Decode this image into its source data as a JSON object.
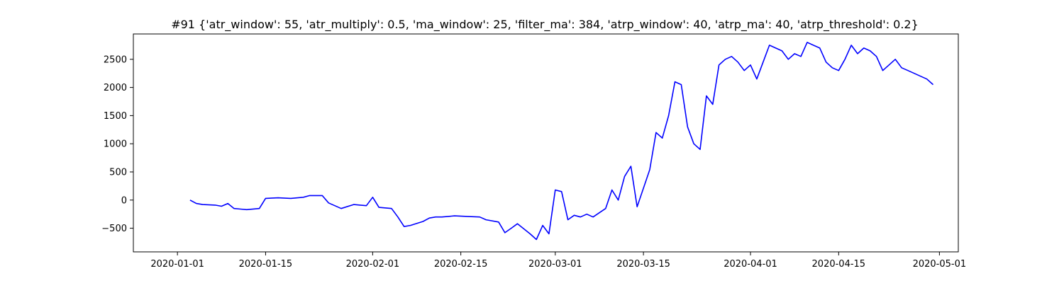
{
  "chart_data": {
    "type": "line",
    "title": "#91 {'atr_window': 55, 'atr_multiply': 0.5, 'ma_window': 25, 'filter_ma': 384, 'atrp_window': 40, 'atrp_ma': 40, 'atrp_threshold': 0.2}",
    "xlabel": "",
    "ylabel": "",
    "x_ticks": [
      "2020-01-01",
      "2020-01-15",
      "2020-02-01",
      "2020-02-15",
      "2020-03-01",
      "2020-03-15",
      "2020-04-01",
      "2020-04-15",
      "2020-05-01"
    ],
    "y_ticks": [
      -500,
      0,
      500,
      1000,
      1500,
      2000,
      2500
    ],
    "xlim": [
      "2019-12-25",
      "2020-05-04"
    ],
    "ylim": [
      -920,
      2950
    ],
    "grid": false,
    "series": [
      {
        "color": "#0000ff",
        "x": [
          "2020-01-03",
          "2020-01-04",
          "2020-01-05",
          "2020-01-07",
          "2020-01-08",
          "2020-01-09",
          "2020-01-10",
          "2020-01-11",
          "2020-01-12",
          "2020-01-14",
          "2020-01-15",
          "2020-01-17",
          "2020-01-19",
          "2020-01-21",
          "2020-01-22",
          "2020-01-24",
          "2020-01-25",
          "2020-01-27",
          "2020-01-29",
          "2020-01-31",
          "2020-02-01",
          "2020-02-02",
          "2020-02-04",
          "2020-02-05",
          "2020-02-06",
          "2020-02-07",
          "2020-02-09",
          "2020-02-10",
          "2020-02-11",
          "2020-02-12",
          "2020-02-14",
          "2020-02-16",
          "2020-02-18",
          "2020-02-19",
          "2020-02-21",
          "2020-02-22",
          "2020-02-23",
          "2020-02-24",
          "2020-02-26",
          "2020-02-27",
          "2020-02-28",
          "2020-02-29",
          "2020-03-01",
          "2020-03-02",
          "2020-03-03",
          "2020-03-04",
          "2020-03-05",
          "2020-03-06",
          "2020-03-07",
          "2020-03-09",
          "2020-03-10",
          "2020-03-11",
          "2020-03-12",
          "2020-03-13",
          "2020-03-14",
          "2020-03-16",
          "2020-03-17",
          "2020-03-18",
          "2020-03-19",
          "2020-03-20",
          "2020-03-21",
          "2020-03-22",
          "2020-03-23",
          "2020-03-24",
          "2020-03-25",
          "2020-03-26",
          "2020-03-27",
          "2020-03-28",
          "2020-03-29",
          "2020-03-30",
          "2020-03-31",
          "2020-04-01",
          "2020-04-02",
          "2020-04-03",
          "2020-04-04",
          "2020-04-06",
          "2020-04-07",
          "2020-04-08",
          "2020-04-09",
          "2020-04-10",
          "2020-04-12",
          "2020-04-13",
          "2020-04-14",
          "2020-04-15",
          "2020-04-16",
          "2020-04-17",
          "2020-04-18",
          "2020-04-19",
          "2020-04-20",
          "2020-04-21",
          "2020-04-22",
          "2020-04-23",
          "2020-04-24",
          "2020-04-25",
          "2020-04-26",
          "2020-04-28",
          "2020-04-29",
          "2020-04-30"
        ],
        "values": [
          0,
          -60,
          -80,
          -90,
          -110,
          -60,
          -150,
          -160,
          -170,
          -150,
          30,
          40,
          30,
          50,
          80,
          80,
          -50,
          -150,
          -80,
          -100,
          50,
          -130,
          -150,
          -300,
          -470,
          -450,
          -380,
          -320,
          -300,
          -300,
          -280,
          -290,
          -300,
          -350,
          -390,
          -580,
          -500,
          -420,
          -600,
          -700,
          -450,
          -600,
          180,
          150,
          -350,
          -270,
          -300,
          -250,
          -300,
          -150,
          180,
          0,
          420,
          600,
          -120,
          540,
          1200,
          1100,
          1500,
          2100,
          2050,
          1300,
          1000,
          900,
          1850,
          1700,
          2400,
          2500,
          2550,
          2450,
          2300,
          2400,
          2150,
          2450,
          2750,
          2650,
          2500,
          2600,
          2550,
          2800,
          2700,
          2450,
          2350,
          2300,
          2500,
          2750,
          2600,
          2700,
          2650,
          2550,
          2300,
          2400,
          2500,
          2350,
          2300,
          2200,
          2150,
          2050
        ]
      }
    ]
  }
}
